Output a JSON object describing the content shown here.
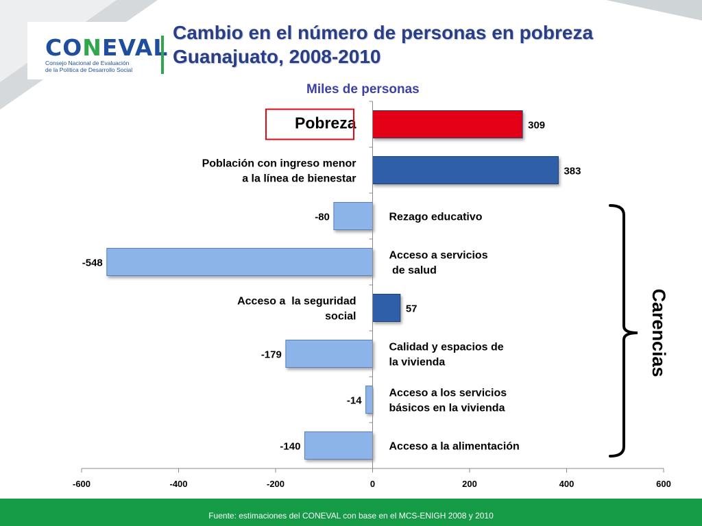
{
  "logo": {
    "name": "CONEVAL",
    "subtitle_line1": "Consejo Nacional de Evaluación",
    "subtitle_line2": "de la Política de Desarrollo Social"
  },
  "title_line1": "Cambio en el número de personas en pobreza",
  "title_line2": "Guanajuato, 2008-2010",
  "subtitle": "Miles de personas",
  "footer": "Fuente: estimaciones del CONEVAL con base en el MCS-ENIGH 2008 y 2010",
  "chart_data": {
    "type": "bar",
    "orientation": "horizontal",
    "xlim": [
      -600,
      600
    ],
    "xticks": [
      -600,
      -400,
      -200,
      0,
      200,
      400,
      600
    ],
    "grid": false,
    "bracket_label": "Carencias",
    "highlight_label": "Pobreza",
    "categories": [
      {
        "label_lines": [
          "Pobreza"
        ],
        "value": 309,
        "color": "#e30613"
      },
      {
        "label_lines": [
          "Población con ingreso menor",
          "a la línea de bienestar"
        ],
        "value": 383,
        "color": "#2f5fa8"
      },
      {
        "label_lines": [
          "Rezago educativo"
        ],
        "value": -80,
        "color": "#8db4e8"
      },
      {
        "label_lines": [
          "Acceso a servicios",
          " de salud"
        ],
        "value": -548,
        "color": "#8db4e8"
      },
      {
        "label_lines": [
          "Acceso a  la seguridad",
          "social"
        ],
        "value": 57,
        "color": "#2f5fa8"
      },
      {
        "label_lines": [
          "Calidad y espacios de",
          "la vivienda"
        ],
        "value": -179,
        "color": "#8db4e8"
      },
      {
        "label_lines": [
          "Acceso a los servicios",
          "básicos en la vivienda"
        ],
        "value": -14,
        "color": "#8db4e8"
      },
      {
        "label_lines": [
          "Acceso a la alimentación"
        ],
        "value": -140,
        "color": "#8db4e8"
      }
    ]
  }
}
